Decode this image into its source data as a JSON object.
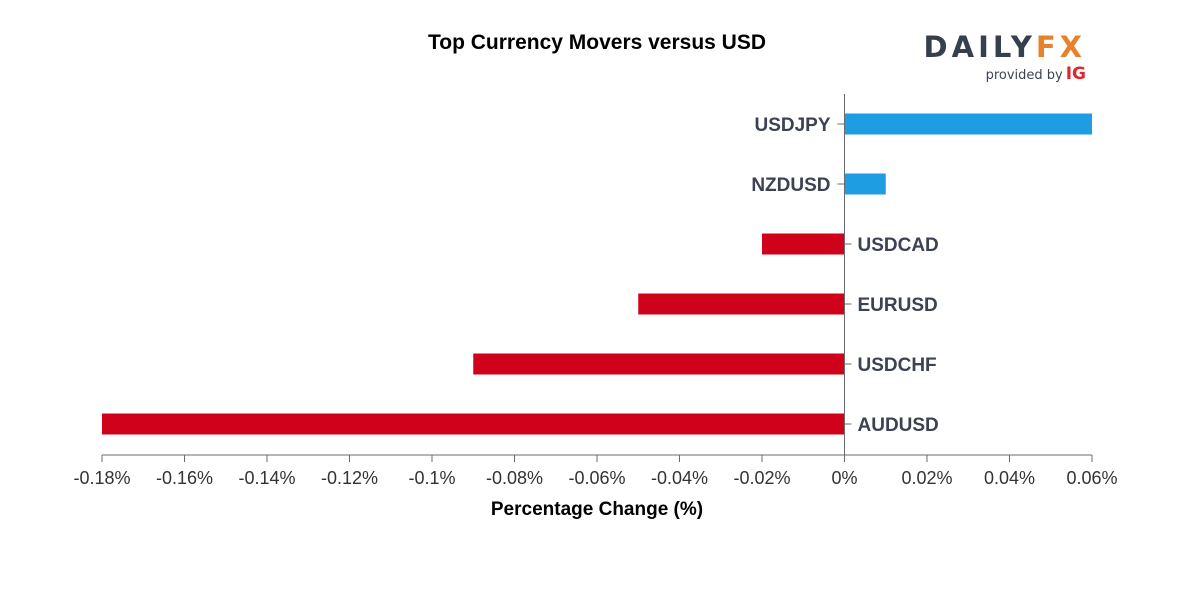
{
  "header": {
    "title": "Top Currency Movers versus USD"
  },
  "logo": {
    "brand_left": "DAILY",
    "brand_right": "FX",
    "tagline": "provided by",
    "partner": "IG",
    "brand_color": "#353f4e",
    "fx_color": "#e8812a",
    "partner_color": "#e0262e"
  },
  "chart_data": {
    "type": "bar",
    "orientation": "horizontal",
    "title": "Top Currency Movers versus USD",
    "xlabel": "Percentage Change (%)",
    "ylabel": "",
    "categories": [
      "USDJPY",
      "NZDUSD",
      "USDCAD",
      "EURUSD",
      "USDCHF",
      "AUDUSD"
    ],
    "values": [
      0.06,
      0.01,
      -0.02,
      -0.05,
      -0.09,
      -0.18
    ],
    "xlim": [
      -0.18,
      0.06
    ],
    "x_ticks": [
      -0.18,
      -0.16,
      -0.14,
      -0.12,
      -0.1,
      -0.08,
      -0.06,
      -0.04,
      -0.02,
      0,
      0.02,
      0.04,
      0.06
    ],
    "x_tick_labels": [
      "-0.18%",
      "-0.16%",
      "-0.14%",
      "-0.12%",
      "-0.1%",
      "-0.08%",
      "-0.06%",
      "-0.04%",
      "-0.02%",
      "0%",
      "0.02%",
      "0.04%",
      "0.06%"
    ],
    "positive_color": "#1f9de3",
    "negative_color": "#d0021b",
    "grid": false,
    "legend": "none"
  }
}
